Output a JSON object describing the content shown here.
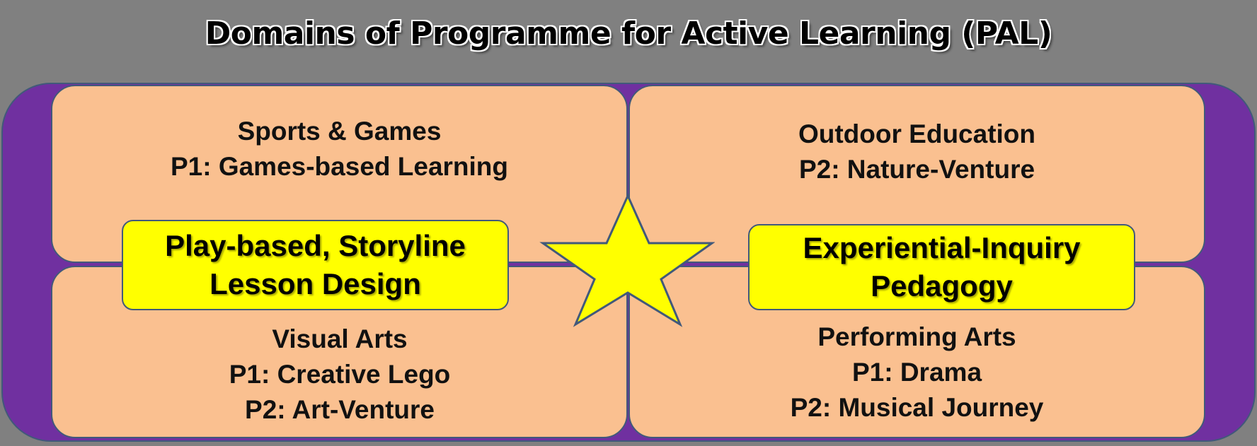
{
  "title": "Domains of Programme for Active Learning (PAL)",
  "quadrants": {
    "top_left": {
      "heading": "Sports & Games",
      "lines": [
        "P1: Games-based Learning"
      ]
    },
    "top_right": {
      "heading": "Outdoor Education",
      "lines": [
        "P2: Nature-Venture"
      ]
    },
    "bottom_left": {
      "heading": "Visual Arts",
      "lines": [
        "P1: Creative Lego",
        "P2: Art-Venture"
      ]
    },
    "bottom_right": {
      "heading": "Performing Arts",
      "lines": [
        "P1: Drama",
        "P2: Musical Journey"
      ]
    }
  },
  "highlights": {
    "left": [
      "Play-based, Storyline",
      "Lesson Design"
    ],
    "right": [
      "Experiential-Inquiry",
      "Pedagogy"
    ]
  },
  "colors": {
    "background": "#808080",
    "frame": "#7030a0",
    "quadrant": "#fac090",
    "highlight": "#ffff00",
    "outline": "#41597a"
  }
}
